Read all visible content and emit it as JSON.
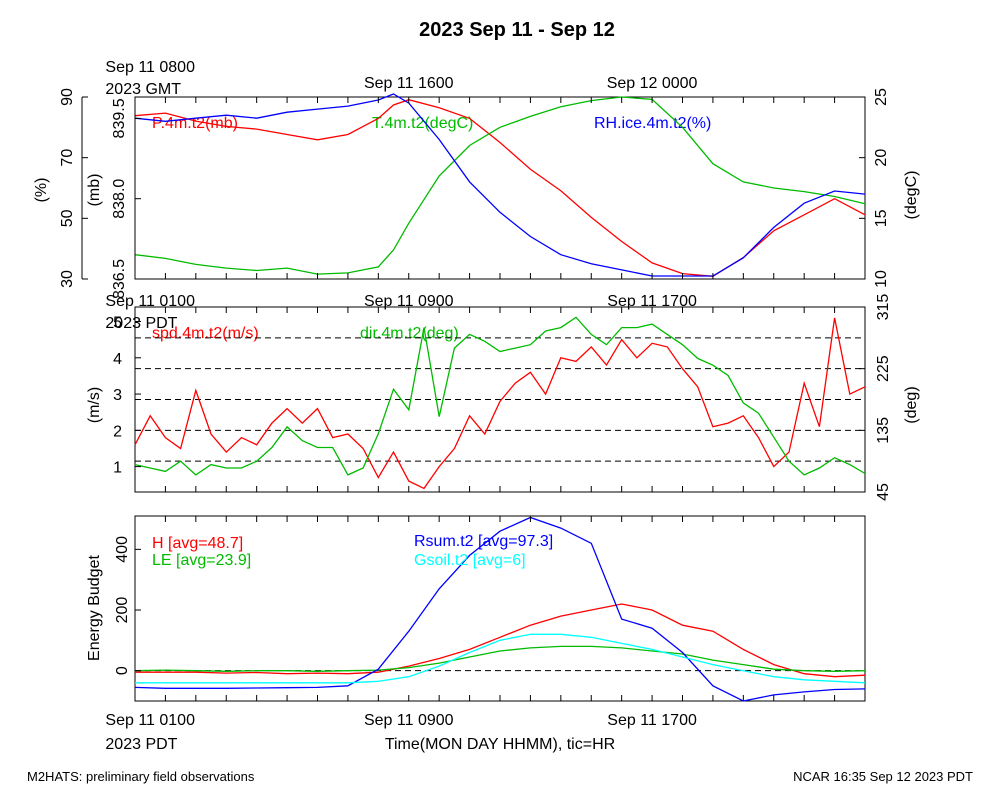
{
  "title": "2023 Sep 11 - Sep 12",
  "footer": {
    "left": "M2HATS: preliminary field observations",
    "right": "NCAR 16:35 Sep 12 2023 PDT"
  },
  "colors": {
    "red": "#ff0000",
    "green": "#00bb00",
    "blue": "#0000ff",
    "cyan": "#00ffff",
    "black": "#000000"
  },
  "chart_data": [
    {
      "type": "line",
      "panel": "state",
      "top_time_labels": [
        {
          "time_hours_pdt": 1,
          "text": "Sep 11 0800",
          "text2": "2023 GMT"
        },
        {
          "time_hours_pdt": 9,
          "text": "Sep 11 1600"
        },
        {
          "time_hours_pdt": 17,
          "text": "Sep 12 0000"
        }
      ],
      "x_range_hours": [
        0,
        24
      ],
      "axes": [
        {
          "ylabel": "(%)",
          "side": "left-outer",
          "ylim": [
            30,
            90
          ],
          "ticks": [
            30,
            50,
            70,
            90
          ]
        },
        {
          "ylabel": "(mb)",
          "side": "left-inner",
          "ylim": [
            836.5,
            839.9
          ],
          "ticks": [
            836.5,
            838.0,
            839.5
          ],
          "tick_labels": [
            "836.5",
            "838.0",
            "839.5"
          ]
        },
        {
          "ylabel": "(degC)",
          "side": "right",
          "ylim": [
            10,
            25
          ],
          "ticks": [
            10,
            15,
            20,
            25
          ]
        }
      ],
      "series": [
        {
          "name": "P.4m.t2(mb)",
          "color": "red",
          "axis": 1,
          "x": [
            0,
            1,
            2,
            3,
            4,
            5,
            6,
            7,
            8,
            8.5,
            9,
            10,
            11,
            12,
            13,
            14,
            15,
            16,
            17,
            18,
            19,
            20,
            21,
            22,
            23,
            24
          ],
          "values": [
            839.55,
            839.6,
            839.45,
            839.35,
            839.3,
            839.2,
            839.1,
            839.2,
            839.5,
            839.75,
            839.85,
            839.7,
            839.5,
            839.05,
            838.55,
            838.15,
            837.65,
            837.2,
            836.8,
            836.6,
            836.55,
            836.9,
            837.4,
            837.7,
            838.0,
            837.7
          ]
        },
        {
          "name": "T.4m.t2(degC)",
          "color": "green",
          "axis": 2,
          "x": [
            0,
            1,
            2,
            3,
            4,
            5,
            6,
            7,
            8,
            8.5,
            9,
            10,
            11,
            12,
            13,
            14,
            15,
            16,
            17,
            18,
            19,
            20,
            21,
            22,
            23,
            24
          ],
          "values": [
            12.0,
            11.7,
            11.2,
            10.9,
            10.7,
            10.9,
            10.4,
            10.5,
            11.0,
            12.4,
            14.6,
            18.5,
            21.0,
            22.5,
            23.4,
            24.2,
            24.7,
            25.0,
            24.8,
            22.5,
            19.5,
            18.0,
            17.5,
            17.2,
            16.8,
            16.2
          ]
        },
        {
          "name": "RH.ice.4m.t2(%)",
          "color": "blue",
          "axis": 0,
          "x": [
            0,
            1,
            2,
            3,
            4,
            5,
            6,
            7,
            8,
            8.5,
            9,
            10,
            11,
            12,
            13,
            14,
            15,
            16,
            17,
            18,
            19,
            20,
            21,
            22,
            23,
            24
          ],
          "values": [
            83,
            82,
            83,
            84,
            83,
            85,
            86,
            87,
            89,
            91,
            88,
            76,
            62,
            52,
            44,
            38,
            35,
            33,
            31,
            31,
            31,
            37,
            47,
            55,
            59,
            58
          ]
        }
      ]
    },
    {
      "type": "line",
      "panel": "wind",
      "top_time_labels": [
        {
          "time_hours_pdt": 1,
          "text": "Sep 11 0100",
          "text2": "2023 PDT"
        },
        {
          "time_hours_pdt": 9,
          "text": "Sep 11 0900"
        },
        {
          "time_hours_pdt": 17,
          "text": "Sep 11 1700"
        }
      ],
      "x_range_hours": [
        0,
        24
      ],
      "grid_lines_deg": [
        45,
        90,
        135,
        180,
        225,
        270,
        315
      ],
      "axes": [
        {
          "ylabel": "(m/s)",
          "side": "left",
          "ylim": [
            0.3,
            5.4
          ],
          "ticks": [
            1,
            2,
            3,
            4,
            5
          ]
        },
        {
          "ylabel": "(deg)",
          "side": "right",
          "ylim": [
            45,
            315
          ],
          "ticks": [
            45,
            135,
            225,
            315
          ]
        }
      ],
      "series": [
        {
          "name": "spd.4m.t2(m/s)",
          "color": "red",
          "axis": 0,
          "x": [
            0,
            0.5,
            1,
            1.5,
            2,
            2.5,
            3,
            3.5,
            4,
            4.5,
            5,
            5.5,
            6,
            6.5,
            7,
            7.5,
            8,
            8.5,
            9,
            9.5,
            10,
            10.5,
            11,
            11.5,
            12,
            12.5,
            13,
            13.5,
            14,
            14.5,
            15,
            15.5,
            16,
            16.5,
            17,
            17.5,
            18,
            18.5,
            19,
            19.5,
            20,
            20.5,
            21,
            21.5,
            22,
            22.5,
            23,
            23.5,
            24
          ],
          "values": [
            1.6,
            2.4,
            1.8,
            1.5,
            3.1,
            1.9,
            1.4,
            1.8,
            1.6,
            2.2,
            2.6,
            2.2,
            2.6,
            1.8,
            1.9,
            1.5,
            0.7,
            1.4,
            0.6,
            0.4,
            1.0,
            1.5,
            2.4,
            1.9,
            2.8,
            3.3,
            3.6,
            3.0,
            4.0,
            3.9,
            4.3,
            3.8,
            4.5,
            4.0,
            4.4,
            4.3,
            3.7,
            3.2,
            2.1,
            2.2,
            2.4,
            1.8,
            1.0,
            1.4,
            3.3,
            2.1,
            5.1,
            3.0,
            3.2
          ]
        },
        {
          "name": "dir.4m.t2(deg)",
          "color": "green",
          "axis": 1,
          "x": [
            0,
            0.5,
            1,
            1.5,
            2,
            2.5,
            3,
            3.5,
            4,
            4.5,
            5,
            5.5,
            6,
            6.5,
            7,
            7.5,
            8,
            8.5,
            9,
            9.5,
            10,
            10.5,
            11,
            11.5,
            12,
            12.5,
            13,
            13.5,
            14,
            14.5,
            15,
            15.5,
            16,
            16.5,
            17,
            17.5,
            18,
            18.5,
            19,
            19.5,
            20,
            20.5,
            21,
            21.5,
            22,
            22.5,
            23,
            23.5,
            24
          ],
          "values": [
            85,
            80,
            75,
            90,
            70,
            85,
            80,
            80,
            90,
            110,
            140,
            120,
            110,
            110,
            70,
            80,
            130,
            195,
            165,
            285,
            155,
            255,
            275,
            265,
            250,
            255,
            260,
            280,
            285,
            300,
            275,
            260,
            285,
            285,
            290,
            275,
            260,
            240,
            230,
            215,
            175,
            160,
            125,
            90,
            70,
            80,
            95,
            85,
            72
          ]
        }
      ]
    },
    {
      "type": "line",
      "panel": "energy",
      "xlabel": "Time(MON DAY HHMM), tic=HR",
      "ylabel": "Energy Budget",
      "bottom_time_labels": [
        {
          "time_hours_pdt": 1,
          "text": "Sep 11 0100",
          "text2": "2023 PDT"
        },
        {
          "time_hours_pdt": 9,
          "text": "Sep 11 0900"
        },
        {
          "time_hours_pdt": 17,
          "text": "Sep 11 1700"
        }
      ],
      "x_range_hours": [
        0,
        24
      ],
      "ylim": [
        -100,
        510
      ],
      "ticks": [
        0,
        200,
        400
      ],
      "zero_line": true,
      "series": [
        {
          "name": "H",
          "legend": "H [avg=48.7]",
          "color": "red",
          "x": [
            0,
            1,
            2,
            3,
            4,
            5,
            6,
            7,
            8,
            9,
            10,
            11,
            12,
            13,
            14,
            15,
            16,
            17,
            18,
            19,
            20,
            21,
            22,
            23,
            24
          ],
          "values": [
            -5,
            -5,
            -5,
            -8,
            -6,
            -10,
            -8,
            -10,
            -5,
            15,
            40,
            70,
            110,
            150,
            180,
            200,
            220,
            200,
            150,
            130,
            70,
            20,
            -10,
            -20,
            -15
          ]
        },
        {
          "name": "LE",
          "legend": "LE [avg=23.9]",
          "color": "green",
          "x": [
            0,
            1,
            2,
            3,
            4,
            5,
            6,
            7,
            8,
            9,
            10,
            11,
            12,
            13,
            14,
            15,
            16,
            17,
            18,
            19,
            20,
            21,
            22,
            23,
            24
          ],
          "values": [
            0,
            2,
            0,
            -2,
            0,
            0,
            -2,
            0,
            2,
            10,
            25,
            45,
            65,
            75,
            80,
            80,
            75,
            65,
            55,
            35,
            20,
            5,
            0,
            -2,
            0
          ]
        },
        {
          "name": "Rsum.t2",
          "legend": "Rsum.t2 [avg=97.3]",
          "color": "blue",
          "x": [
            0,
            1,
            2,
            3,
            4,
            5,
            6,
            7,
            8,
            9,
            10,
            11,
            12,
            13,
            14,
            15,
            16,
            17,
            18,
            19,
            20,
            21,
            22,
            23,
            24
          ],
          "values": [
            -55,
            -58,
            -58,
            -58,
            -57,
            -56,
            -55,
            -50,
            5,
            130,
            270,
            380,
            460,
            505,
            470,
            420,
            170,
            140,
            60,
            -50,
            -100,
            -80,
            -70,
            -62,
            -60
          ]
        },
        {
          "name": "Gsoil.t2",
          "legend": "Gsoil.t2 [avg=6]",
          "color": "cyan",
          "x": [
            0,
            1,
            2,
            3,
            4,
            5,
            6,
            7,
            8,
            9,
            10,
            11,
            12,
            13,
            14,
            15,
            16,
            17,
            18,
            19,
            20,
            21,
            22,
            23,
            24
          ],
          "values": [
            -40,
            -40,
            -40,
            -40,
            -40,
            -40,
            -40,
            -40,
            -35,
            -20,
            15,
            60,
            100,
            120,
            120,
            110,
            90,
            70,
            45,
            20,
            0,
            -20,
            -30,
            -35,
            -40
          ]
        }
      ]
    }
  ]
}
